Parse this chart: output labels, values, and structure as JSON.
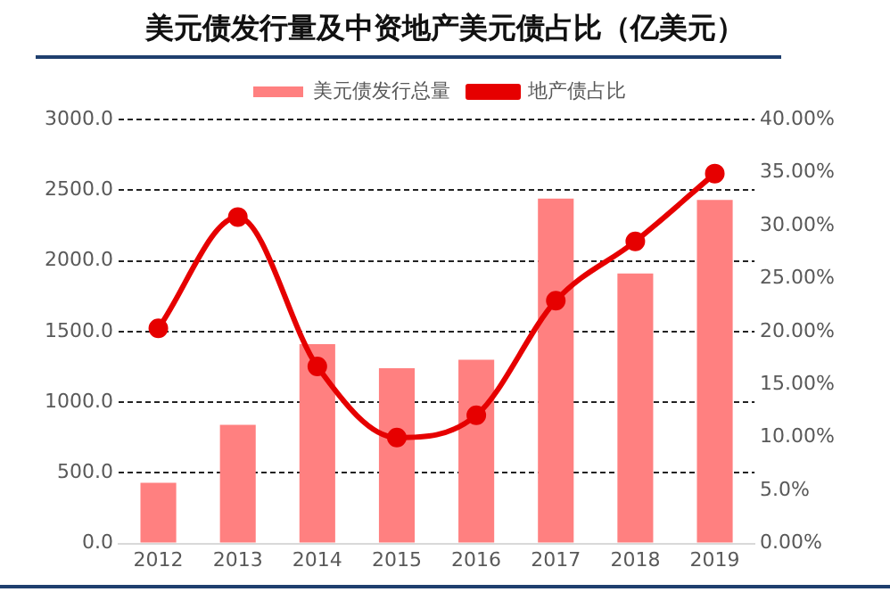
{
  "chart_data": {
    "type": "bar",
    "title": "美元债发行量及中资地产美元债占比（亿美元）",
    "categories": [
      "2012",
      "2013",
      "2014",
      "2015",
      "2016",
      "2017",
      "2018",
      "2019"
    ],
    "series": [
      {
        "name": "美元债发行总量",
        "color": "#ff8080",
        "values": [
          430,
          840,
          1410,
          1240,
          1300,
          2440,
          1910,
          2430
        ]
      },
      {
        "name": "地产债占比",
        "type": "line",
        "axis": "y2",
        "color": "#e60000",
        "marker": "circle",
        "values": [
          20.3,
          30.8,
          16.7,
          10.0,
          12.1,
          22.9,
          28.5,
          34.9
        ]
      }
    ],
    "ylim": [
      0,
      3000
    ],
    "yticks": [
      {
        "value": 0,
        "label": "0.0"
      },
      {
        "value": 500,
        "label": "500.0"
      },
      {
        "value": 1000,
        "label": "1000.0"
      },
      {
        "value": 1500,
        "label": "1500.0"
      },
      {
        "value": 2000,
        "label": "2000.0"
      },
      {
        "value": 2500,
        "label": "2500.0"
      },
      {
        "value": 3000,
        "label": "3000.0"
      }
    ],
    "y2lim": [
      0,
      40
    ],
    "y2ticks": [
      {
        "value": 0,
        "label": "0.00%"
      },
      {
        "value": 5,
        "label": "5.0%"
      },
      {
        "value": 10,
        "label": "10.00%"
      },
      {
        "value": 15,
        "label": "15.00%"
      },
      {
        "value": 20,
        "label": "20.00%"
      },
      {
        "value": 25,
        "label": "25.00%"
      },
      {
        "value": 30,
        "label": "30.00%"
      },
      {
        "value": 35,
        "label": "35.00%"
      },
      {
        "value": 40,
        "label": "40.00%"
      }
    ],
    "grid": "y",
    "legend": "top"
  }
}
